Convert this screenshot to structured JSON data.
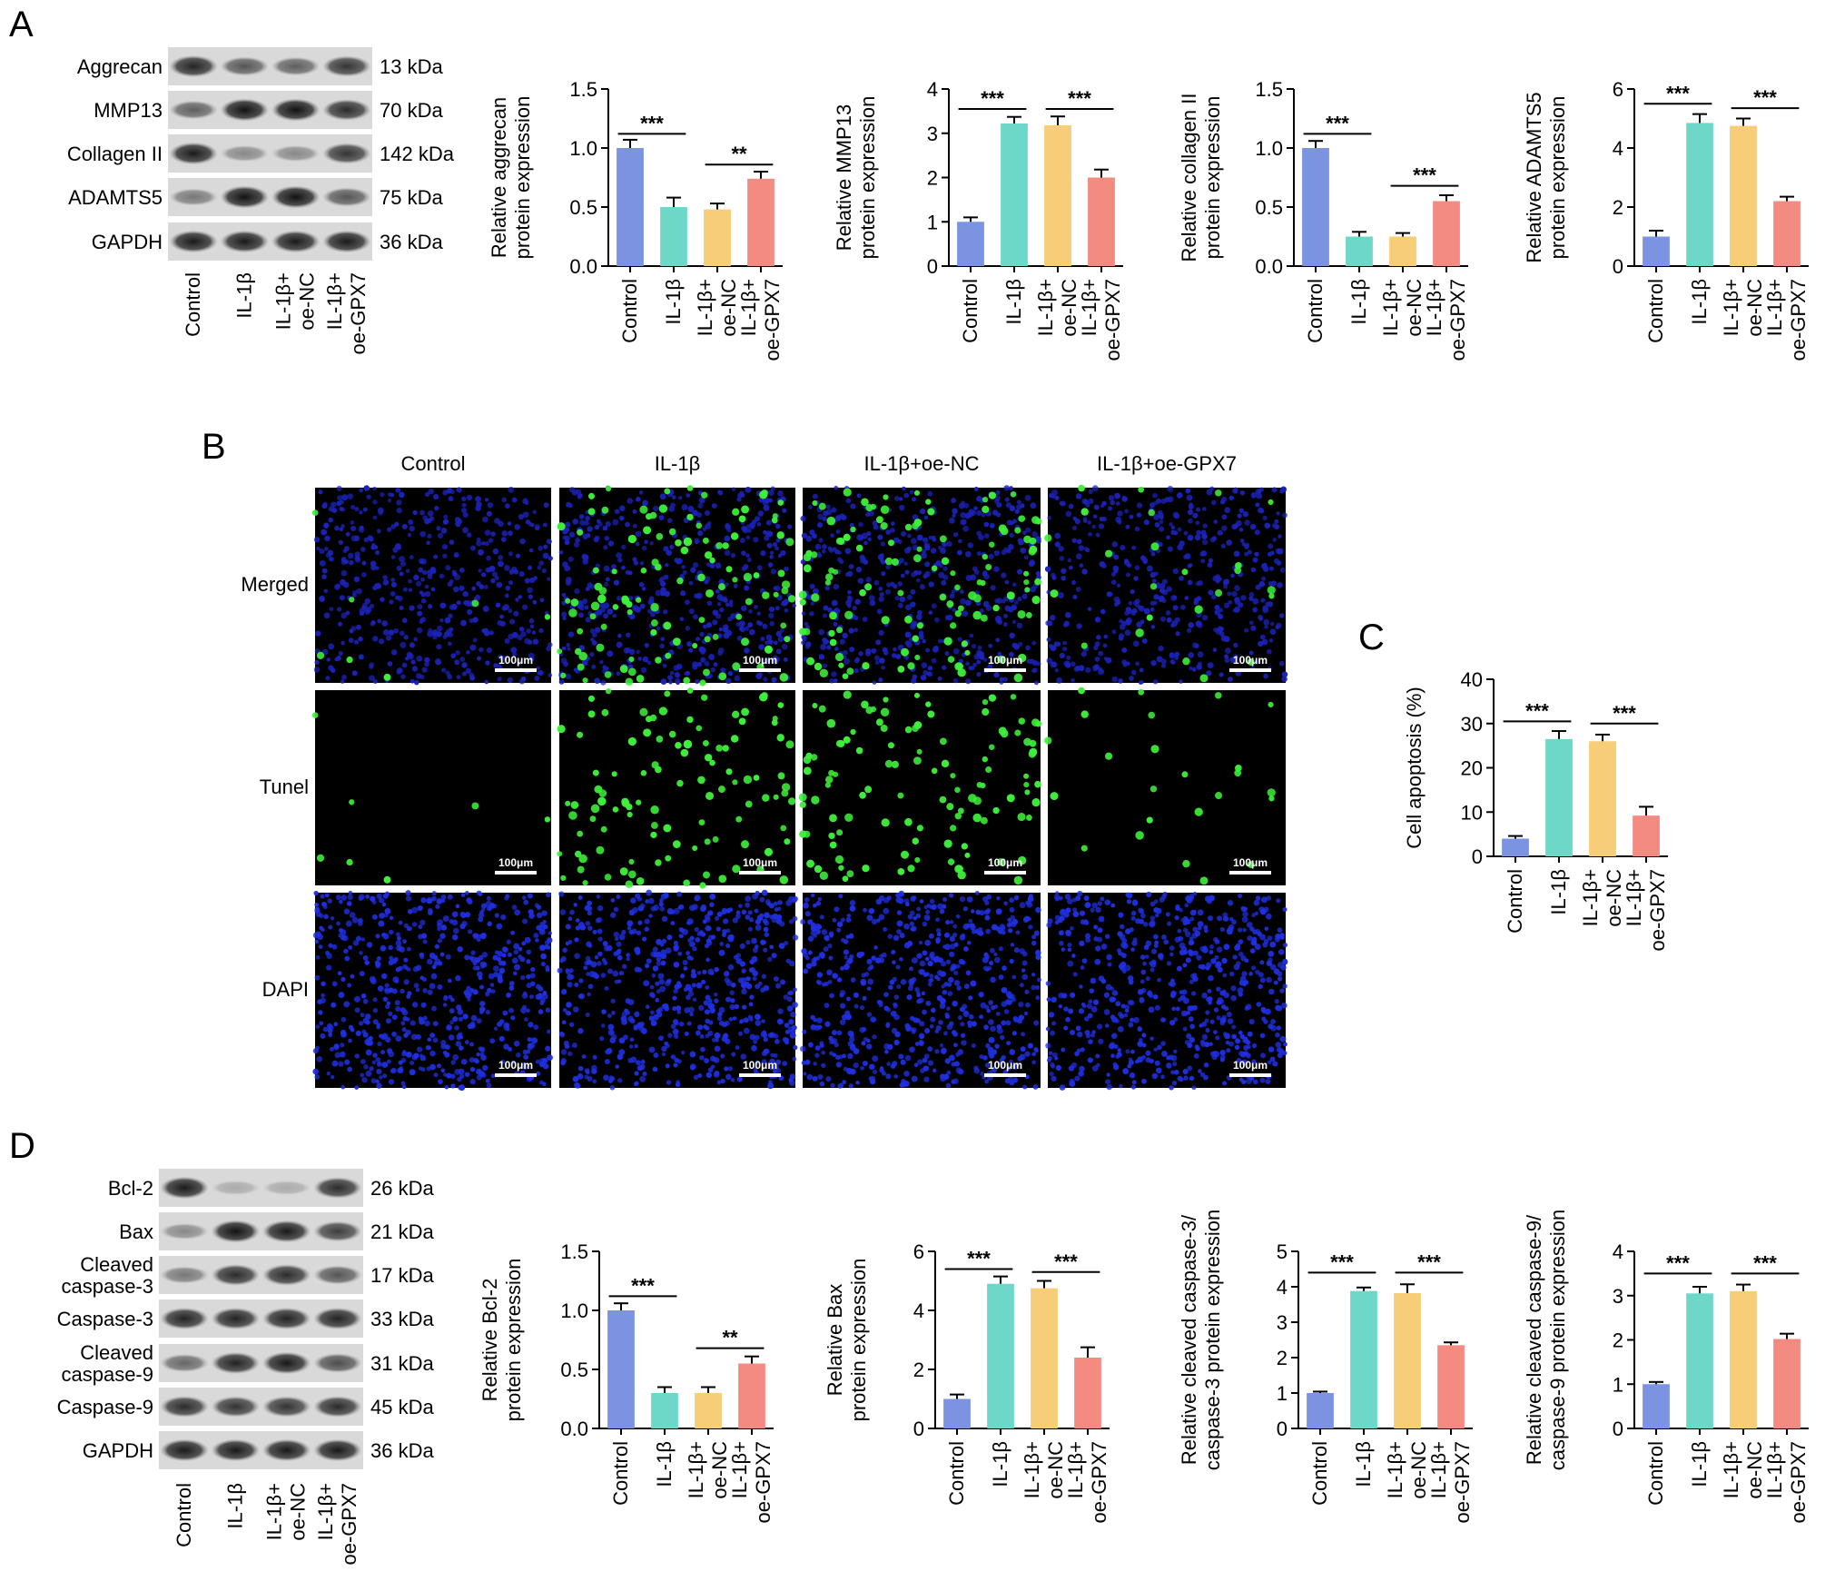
{
  "panels": {
    "a": "A",
    "b": "B",
    "c": "C",
    "d": "D"
  },
  "colors": {
    "control": "#7b93e0",
    "il1b": "#6ed8c8",
    "il1b_oenc": "#f7cd78",
    "il1b_oegpx7": "#f48b80"
  },
  "group_labels": [
    "Control",
    "IL-1β",
    "IL-1β+\noe-NC",
    "IL-1β+\noe-GPX7"
  ],
  "blot_a": {
    "bands": [
      "Aggrecan",
      "MMP13",
      "Collagen II",
      "ADAMTS5",
      "GAPDH"
    ],
    "kda": [
      "13 kDa",
      "70 kDa",
      "142 kDa",
      "75 kDa",
      "36 kDa"
    ]
  },
  "blot_d": {
    "bands": [
      "Bcl-2",
      "Bax",
      "Cleaved\ncaspase-3",
      "Caspase-3",
      "Cleaved\ncaspase-9",
      "Caspase-9",
      "GAPDH"
    ],
    "kda": [
      "26 kDa",
      "21 kDa",
      "17 kDa",
      "33 kDa",
      "31 kDa",
      "45 kDa",
      "36 kDa"
    ]
  },
  "microscopy": {
    "columns": [
      "Control",
      "IL-1β",
      "IL-1β+oe-NC",
      "IL-1β+oe-GPX7"
    ],
    "rows": [
      "Merged",
      "Tunel",
      "DAPI"
    ],
    "scale_bar": "100μm",
    "tunel_density": [
      0.06,
      1.0,
      1.05,
      0.22
    ]
  },
  "chart_data": [
    {
      "id": "a1",
      "type": "bar",
      "categories": [
        "Control",
        "IL-1β",
        "IL-1β+oe-NC",
        "IL-1β+oe-GPX7"
      ],
      "values": [
        1.0,
        0.5,
        0.48,
        0.74
      ],
      "errors": [
        0.07,
        0.08,
        0.05,
        0.06
      ],
      "ylabel": "Relative aggrecan\nprotein expression",
      "ylim": [
        0,
        1.5
      ],
      "yticks": [
        "0.0",
        "0.5",
        "1.0",
        "1.5"
      ],
      "sig": [
        {
          "from": 0,
          "to": 1,
          "label": "***",
          "y": 1.12
        },
        {
          "from": 2,
          "to": 3,
          "label": "**",
          "y": 0.86
        }
      ]
    },
    {
      "id": "a2",
      "type": "bar",
      "categories": [
        "Control",
        "IL-1β",
        "IL-1β+oe-NC",
        "IL-1β+oe-GPX7"
      ],
      "values": [
        1.0,
        3.22,
        3.18,
        2.0
      ],
      "errors": [
        0.1,
        0.15,
        0.2,
        0.18
      ],
      "ylabel": "Relative MMP13\nprotein expression",
      "ylim": [
        0,
        4
      ],
      "yticks": [
        "0",
        "1",
        "2",
        "3",
        "4"
      ],
      "sig": [
        {
          "from": 0,
          "to": 1,
          "label": "***",
          "y": 3.55
        },
        {
          "from": 2,
          "to": 3,
          "label": "***",
          "y": 3.55
        }
      ]
    },
    {
      "id": "a3",
      "type": "bar",
      "categories": [
        "Control",
        "IL-1β",
        "IL-1β+oe-NC",
        "IL-1β+oe-GPX7"
      ],
      "values": [
        1.0,
        0.25,
        0.25,
        0.55
      ],
      "errors": [
        0.06,
        0.04,
        0.03,
        0.05
      ],
      "ylabel": "Relative collagen II\nprotein expression",
      "ylim": [
        0,
        1.5
      ],
      "yticks": [
        "0.0",
        "0.5",
        "1.0",
        "1.5"
      ],
      "sig": [
        {
          "from": 0,
          "to": 1,
          "label": "***",
          "y": 1.12
        },
        {
          "from": 2,
          "to": 3,
          "label": "***",
          "y": 0.68
        }
      ]
    },
    {
      "id": "a4",
      "type": "bar",
      "categories": [
        "Control",
        "IL-1β",
        "IL-1β+oe-NC",
        "IL-1β+oe-GPX7"
      ],
      "values": [
        1.0,
        4.85,
        4.75,
        2.2
      ],
      "errors": [
        0.2,
        0.3,
        0.25,
        0.15
      ],
      "ylabel": "Relative ADAMTS5\nprotein expression",
      "ylim": [
        0,
        6
      ],
      "yticks": [
        "0",
        "2",
        "4",
        "6"
      ],
      "sig": [
        {
          "from": 0,
          "to": 1,
          "label": "***",
          "y": 5.5
        },
        {
          "from": 2,
          "to": 3,
          "label": "***",
          "y": 5.35
        }
      ]
    },
    {
      "id": "c",
      "type": "bar",
      "categories": [
        "Control",
        "IL-1β",
        "IL-1β+oe-NC",
        "IL-1β+oe-GPX7"
      ],
      "values": [
        4.0,
        26.5,
        26.0,
        9.2
      ],
      "errors": [
        0.6,
        1.8,
        1.5,
        2.0
      ],
      "ylabel": "Cell apoptosis (%)",
      "ylim": [
        0,
        40
      ],
      "yticks": [
        "0",
        "10",
        "20",
        "30",
        "40"
      ],
      "sig": [
        {
          "from": 0,
          "to": 1,
          "label": "***",
          "y": 30.5
        },
        {
          "from": 2,
          "to": 3,
          "label": "***",
          "y": 30.0
        }
      ]
    },
    {
      "id": "d1",
      "type": "bar",
      "categories": [
        "Control",
        "IL-1β",
        "IL-1β+oe-NC",
        "IL-1β+oe-GPX7"
      ],
      "values": [
        1.0,
        0.3,
        0.3,
        0.55
      ],
      "errors": [
        0.06,
        0.05,
        0.05,
        0.06
      ],
      "ylabel": "Relative Bcl-2\nprotein expression",
      "ylim": [
        0,
        1.5
      ],
      "yticks": [
        "0.0",
        "0.5",
        "1.0",
        "1.5"
      ],
      "sig": [
        {
          "from": 0,
          "to": 1,
          "label": "***",
          "y": 1.12
        },
        {
          "from": 2,
          "to": 3,
          "label": "**",
          "y": 0.68
        }
      ]
    },
    {
      "id": "d2",
      "type": "bar",
      "categories": [
        "Control",
        "IL-1β",
        "IL-1β+oe-NC",
        "IL-1β+oe-GPX7"
      ],
      "values": [
        1.0,
        4.9,
        4.75,
        2.4
      ],
      "errors": [
        0.15,
        0.25,
        0.25,
        0.35
      ],
      "ylabel": "Relative Bax\nprotein expression",
      "ylim": [
        0,
        6
      ],
      "yticks": [
        "0",
        "2",
        "4",
        "6"
      ],
      "sig": [
        {
          "from": 0,
          "to": 1,
          "label": "***",
          "y": 5.4
        },
        {
          "from": 2,
          "to": 3,
          "label": "***",
          "y": 5.3
        }
      ]
    },
    {
      "id": "d3",
      "type": "bar",
      "categories": [
        "Control",
        "IL-1β",
        "IL-1β+oe-NC",
        "IL-1β+oe-GPX7"
      ],
      "values": [
        1.0,
        3.88,
        3.82,
        2.35
      ],
      "errors": [
        0.04,
        0.1,
        0.25,
        0.08
      ],
      "ylabel": "Relative cleaved caspase-3/\ncaspase-3 protein expression",
      "ylim": [
        0,
        5
      ],
      "yticks": [
        "0",
        "1",
        "2",
        "3",
        "4",
        "5"
      ],
      "sig": [
        {
          "from": 0,
          "to": 1,
          "label": "***",
          "y": 4.4
        },
        {
          "from": 2,
          "to": 3,
          "label": "***",
          "y": 4.4
        }
      ]
    },
    {
      "id": "d4",
      "type": "bar",
      "categories": [
        "Control",
        "IL-1β",
        "IL-1β+oe-NC",
        "IL-1β+oe-GPX7"
      ],
      "values": [
        1.0,
        3.05,
        3.1,
        2.02
      ],
      "errors": [
        0.05,
        0.15,
        0.15,
        0.12
      ],
      "ylabel": "Relative cleaved caspase-9/\ncaspase-9 protein expression",
      "ylim": [
        0,
        4
      ],
      "yticks": [
        "0",
        "1",
        "2",
        "3",
        "4"
      ],
      "sig": [
        {
          "from": 0,
          "to": 1,
          "label": "***",
          "y": 3.5
        },
        {
          "from": 2,
          "to": 3,
          "label": "***",
          "y": 3.5
        }
      ]
    }
  ]
}
